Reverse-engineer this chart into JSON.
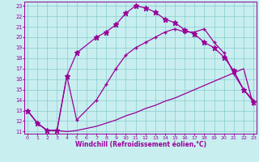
{
  "xlabel": "Windchill (Refroidissement éolien,°C)",
  "bg_color": "#c8eef0",
  "line_color": "#990099",
  "grid_color": "#88cccc",
  "xmin": 0,
  "xmax": 23,
  "ymin": 11,
  "ymax": 23,
  "line_star_x": [
    0,
    1,
    2,
    3,
    4,
    5,
    7,
    8,
    9,
    10,
    11,
    12,
    13,
    14,
    15,
    16,
    17,
    18,
    19,
    20,
    21,
    22,
    23
  ],
  "line_star_y": [
    13,
    11.8,
    11.1,
    11.1,
    16.3,
    18.5,
    20.0,
    20.5,
    21.2,
    22.3,
    23.0,
    22.8,
    22.4,
    21.7,
    21.4,
    20.7,
    20.3,
    19.5,
    19.0,
    18.1,
    16.8,
    15.0,
    13.8
  ],
  "line_plus_x": [
    0,
    1,
    2,
    3,
    4,
    5,
    7,
    8,
    9,
    10,
    11,
    12,
    13,
    14,
    15,
    16,
    17,
    18,
    19,
    20,
    21,
    22,
    23
  ],
  "line_plus_y": [
    13,
    11.8,
    11.1,
    11.1,
    16.3,
    12.1,
    14.0,
    15.5,
    17.0,
    18.3,
    19.0,
    19.5,
    20.0,
    20.5,
    20.8,
    20.5,
    20.5,
    20.8,
    19.5,
    18.5,
    16.5,
    15.0,
    14.0
  ],
  "line_flat_x": [
    0,
    1,
    2,
    3,
    4,
    5,
    7,
    8,
    9,
    10,
    11,
    12,
    13,
    14,
    15,
    16,
    17,
    18,
    19,
    20,
    21,
    22,
    23
  ],
  "line_flat_y": [
    13,
    11.8,
    11.1,
    11.1,
    11.0,
    11.1,
    11.5,
    11.8,
    12.1,
    12.5,
    12.8,
    13.2,
    13.5,
    13.9,
    14.2,
    14.6,
    15.0,
    15.4,
    15.8,
    16.2,
    16.6,
    17.0,
    13.5
  ],
  "xticks": [
    0,
    1,
    2,
    3,
    4,
    5,
    6,
    7,
    8,
    9,
    10,
    11,
    12,
    13,
    14,
    15,
    16,
    17,
    18,
    19,
    20,
    21,
    22,
    23
  ],
  "yticks": [
    11,
    12,
    13,
    14,
    15,
    16,
    17,
    18,
    19,
    20,
    21,
    22,
    23
  ]
}
